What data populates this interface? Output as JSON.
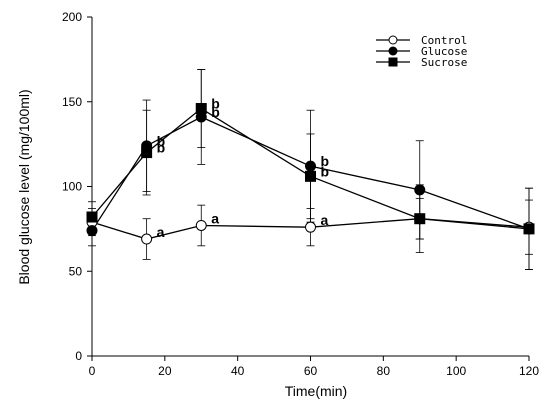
{
  "chart_data": {
    "type": "line",
    "title": "",
    "xlabel": "Time(min)",
    "ylabel": "Blood glucose level (mg/100ml)",
    "xlim": [
      0,
      120
    ],
    "ylim": [
      0,
      200
    ],
    "x_ticks": [
      0,
      20,
      40,
      60,
      80,
      100,
      120
    ],
    "y_ticks": [
      0,
      50,
      100,
      150,
      200
    ],
    "grid": false,
    "legend_position": "top-right",
    "series": [
      {
        "name": "Control",
        "marker": "open-circle",
        "x": [
          0,
          15,
          30,
          60,
          90,
          120
        ],
        "y": [
          79,
          69,
          77,
          76,
          81,
          76
        ],
        "error": [
          8,
          12,
          12,
          11,
          12,
          16
        ]
      },
      {
        "name": "Glucose",
        "marker": "filled-circle",
        "x": [
          0,
          15,
          30,
          60,
          90,
          120
        ],
        "y": [
          74,
          124,
          141,
          112,
          98,
          75
        ],
        "error": [
          9,
          27,
          28,
          33,
          29,
          24
        ]
      },
      {
        "name": "Sucrose",
        "marker": "filled-square",
        "x": [
          0,
          15,
          30,
          60,
          90,
          120
        ],
        "y": [
          82,
          120,
          146,
          106,
          81,
          75
        ],
        "error": [
          9,
          25,
          23,
          25,
          20,
          24
        ]
      }
    ],
    "annotations": [
      {
        "text": "a",
        "x": 15,
        "y": 69
      },
      {
        "text": "b",
        "x": 15,
        "y": 124
      },
      {
        "text": "b",
        "x": 15,
        "y": 120
      },
      {
        "text": "b",
        "x": 30,
        "y": 146
      },
      {
        "text": "b",
        "x": 30,
        "y": 141
      },
      {
        "text": "a",
        "x": 30,
        "y": 77
      },
      {
        "text": "b",
        "x": 60,
        "y": 112
      },
      {
        "text": "b",
        "x": 60,
        "y": 106
      },
      {
        "text": "a",
        "x": 60,
        "y": 76
      }
    ]
  }
}
